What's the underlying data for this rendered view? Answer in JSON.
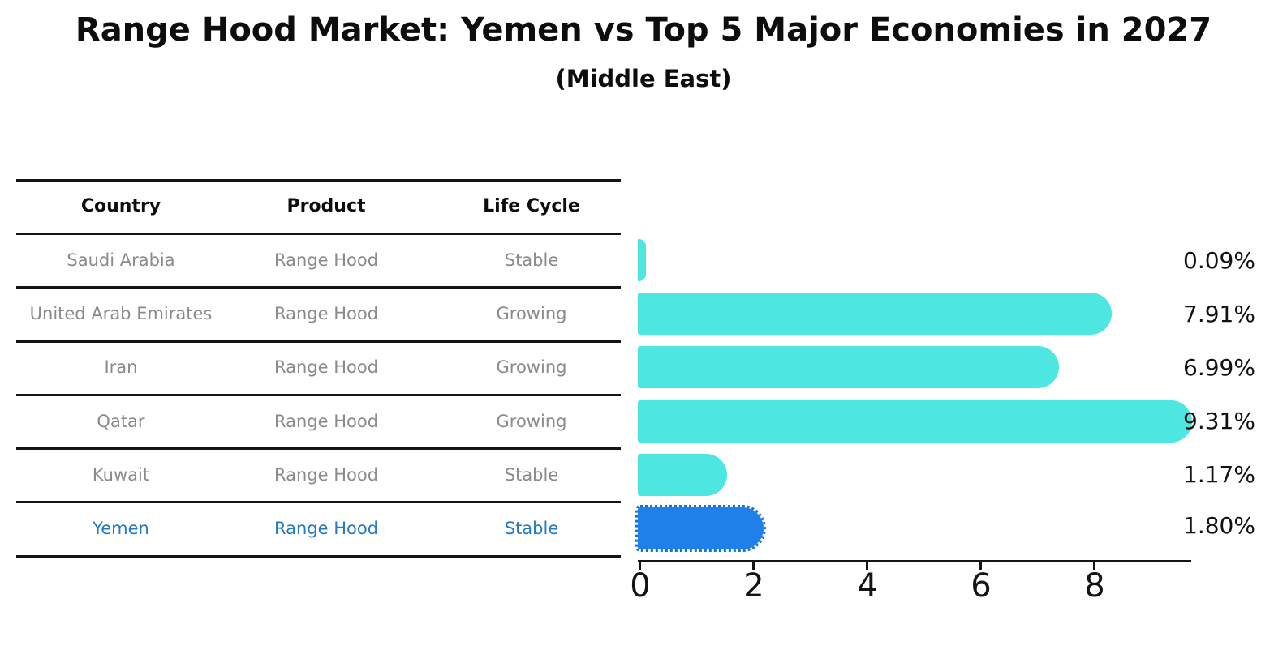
{
  "title": "Range Hood Market: Yemen vs Top 5 Major Economies in 2027",
  "subtitle": "(Middle East)",
  "table": {
    "headers": [
      "Country",
      "Product",
      "Life Cycle"
    ],
    "rows": [
      {
        "country": "Saudi Arabia",
        "product": "Range Hood",
        "life_cycle": "Stable",
        "highlighted": false
      },
      {
        "country": "United Arab Emirates",
        "product": "Range Hood",
        "life_cycle": "Growing",
        "highlighted": false
      },
      {
        "country": "Iran",
        "product": "Range Hood",
        "life_cycle": "Growing",
        "highlighted": false
      },
      {
        "country": "Qatar",
        "product": "Range Hood",
        "life_cycle": "Growing",
        "highlighted": false
      },
      {
        "country": "Kuwait",
        "product": "Range Hood",
        "life_cycle": "Stable",
        "highlighted": false
      },
      {
        "country": "Yemen",
        "product": "Range Hood",
        "life_cycle": "Stable",
        "highlighted": true
      }
    ]
  },
  "chart_data": {
    "type": "bar",
    "orientation": "horizontal",
    "categories": [
      "Saudi Arabia",
      "United Arab Emirates",
      "Iran",
      "Qatar",
      "Kuwait",
      "Yemen"
    ],
    "values": [
      0.09,
      7.91,
      6.99,
      9.31,
      1.17,
      1.8
    ],
    "value_labels": [
      "0.09%",
      "7.91%",
      "6.99%",
      "9.31%",
      "1.17%",
      "1.80%"
    ],
    "xticks": [
      "0",
      "2",
      "4",
      "6",
      "8"
    ],
    "xlim": [
      0,
      9.7
    ],
    "grid": false,
    "legend": "none",
    "bar_color": "#4de6e1",
    "highlight_index": 5,
    "highlight_color": "#1e80e8",
    "highlight_border_color": "#1272d8",
    "highlight_text_color": "#2479c2",
    "axis_color": "#141414",
    "label_color": "#111111"
  }
}
